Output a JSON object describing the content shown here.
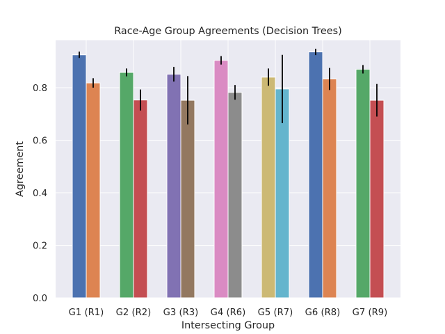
{
  "chart_data": {
    "type": "bar",
    "title": "Race-Age Group Agreements (Decision Trees)",
    "xlabel": "Intersecting Group",
    "ylabel": "Agreement",
    "ylim": [
      0,
      0.98
    ],
    "yticks": [
      "0.0",
      "0.2",
      "0.4",
      "0.6",
      "0.8"
    ],
    "grid": true,
    "categories": [
      "G1 (R1)",
      "G2 (R2)",
      "G3 (R3)",
      "G4 (R6)",
      "G5 (R7)",
      "G6 (R8)",
      "G7 (R9)"
    ],
    "groups": [
      {
        "category": "G1 (R1)",
        "bars": [
          {
            "value": 0.925,
            "error": 0.012,
            "color": "#4c72b0"
          },
          {
            "value": 0.818,
            "error": 0.018,
            "color": "#dd8452"
          }
        ]
      },
      {
        "category": "G2 (R2)",
        "bars": [
          {
            "value": 0.858,
            "error": 0.015,
            "color": "#55a868"
          },
          {
            "value": 0.753,
            "error": 0.04,
            "color": "#c44e52"
          }
        ]
      },
      {
        "category": "G3 (R3)",
        "bars": [
          {
            "value": 0.851,
            "error": 0.028,
            "color": "#8172b3"
          },
          {
            "value": 0.752,
            "error": 0.092,
            "color": "#937860"
          }
        ]
      },
      {
        "category": "G4 (R6)",
        "bars": [
          {
            "value": 0.904,
            "error": 0.016,
            "color": "#da8bc3"
          },
          {
            "value": 0.782,
            "error": 0.028,
            "color": "#8c8c8c"
          }
        ]
      },
      {
        "category": "G5 (R7)",
        "bars": [
          {
            "value": 0.84,
            "error": 0.033,
            "color": "#ccb974"
          },
          {
            "value": 0.795,
            "error": 0.13,
            "color": "#64b5cd"
          }
        ]
      },
      {
        "category": "G6 (R8)",
        "bars": [
          {
            "value": 0.936,
            "error": 0.012,
            "color": "#4c72b0"
          },
          {
            "value": 0.833,
            "error": 0.042,
            "color": "#dd8452"
          }
        ]
      },
      {
        "category": "G7 (R9)",
        "bars": [
          {
            "value": 0.87,
            "error": 0.016,
            "color": "#55a868"
          },
          {
            "value": 0.752,
            "error": 0.062,
            "color": "#c44e52"
          }
        ]
      }
    ],
    "colors": {
      "plot_background": "#eaeaf2",
      "grid": "#ffffff",
      "error_bar": "#000000"
    }
  }
}
